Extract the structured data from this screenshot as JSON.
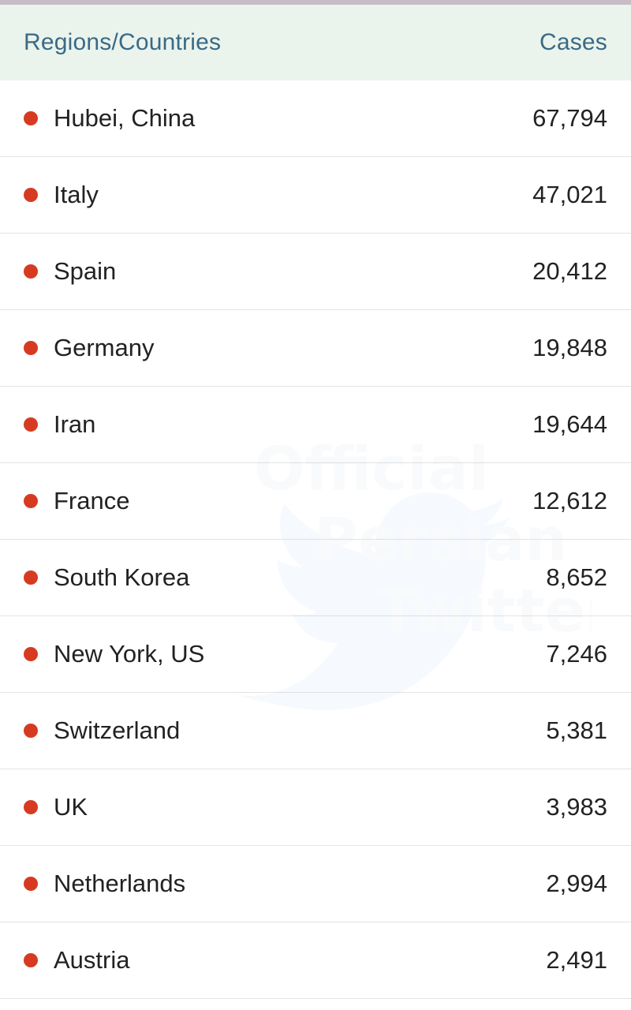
{
  "header": {
    "left_label": "Regions/Countries",
    "right_label": "Cases"
  },
  "rows": [
    {
      "name": "Hubei, China",
      "cases": "67,794"
    },
    {
      "name": "Italy",
      "cases": "47,021"
    },
    {
      "name": "Spain",
      "cases": "20,412"
    },
    {
      "name": "Germany",
      "cases": "19,848"
    },
    {
      "name": "Iran",
      "cases": "19,644"
    },
    {
      "name": "France",
      "cases": "12,612"
    },
    {
      "name": "South Korea",
      "cases": "8,652"
    },
    {
      "name": "New York, US",
      "cases": "7,246"
    },
    {
      "name": "Switzerland",
      "cases": "5,381"
    },
    {
      "name": "UK",
      "cases": "3,983"
    },
    {
      "name": "Netherlands",
      "cases": "2,994"
    },
    {
      "name": "Austria",
      "cases": "2,491"
    }
  ],
  "watermark": {
    "line1": "Official",
    "line2": "Persian",
    "line3": "Twitter"
  },
  "colors": {
    "header_bg": "#eaf4ec",
    "header_text": "#3a6a86",
    "dot": "#d63b22",
    "row_divider": "#e3e3e3"
  },
  "icons": {
    "row_marker": "red-dot-icon",
    "watermark_logo": "bird-logo-icon"
  }
}
